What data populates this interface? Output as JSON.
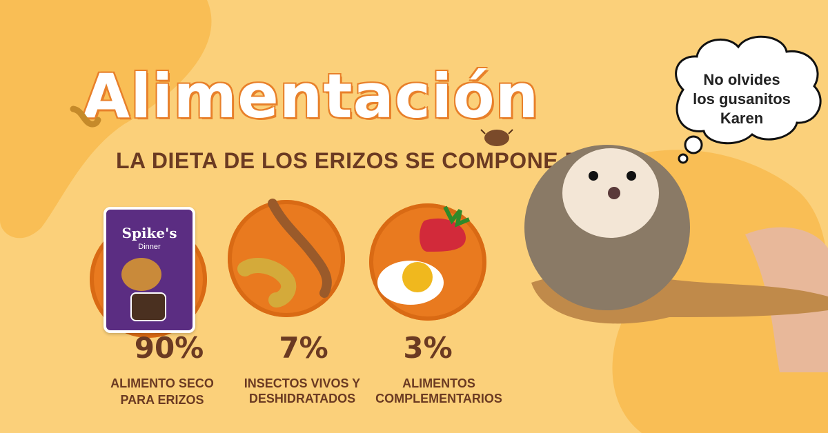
{
  "title": "Alimentación",
  "subtitle": "LA DIETA DE LOS ERIZOS SE COMPONE DE:",
  "items": [
    {
      "percent": "90%",
      "label_line1": "ALIMENTO SECO",
      "label_line2": "PARA ERIZOS",
      "product_brand": "Spike's",
      "product_sub": "Dinner"
    },
    {
      "percent": "7%",
      "label_line1": "INSECTOS VIVOS Y",
      "label_line2": "DESHIDRATADOS"
    },
    {
      "percent": "3%",
      "label_line1": "ALIMENTOS",
      "label_line2": "COMPLEMENTARIOS"
    }
  ],
  "speech_bubble": {
    "line1": "No olvides",
    "line2": "los gusanitos",
    "line3": "Karen"
  },
  "colors": {
    "background": "#fbd07a",
    "accent": "#e97a1f",
    "text": "#6b3a22",
    "title": "#ffffff"
  }
}
